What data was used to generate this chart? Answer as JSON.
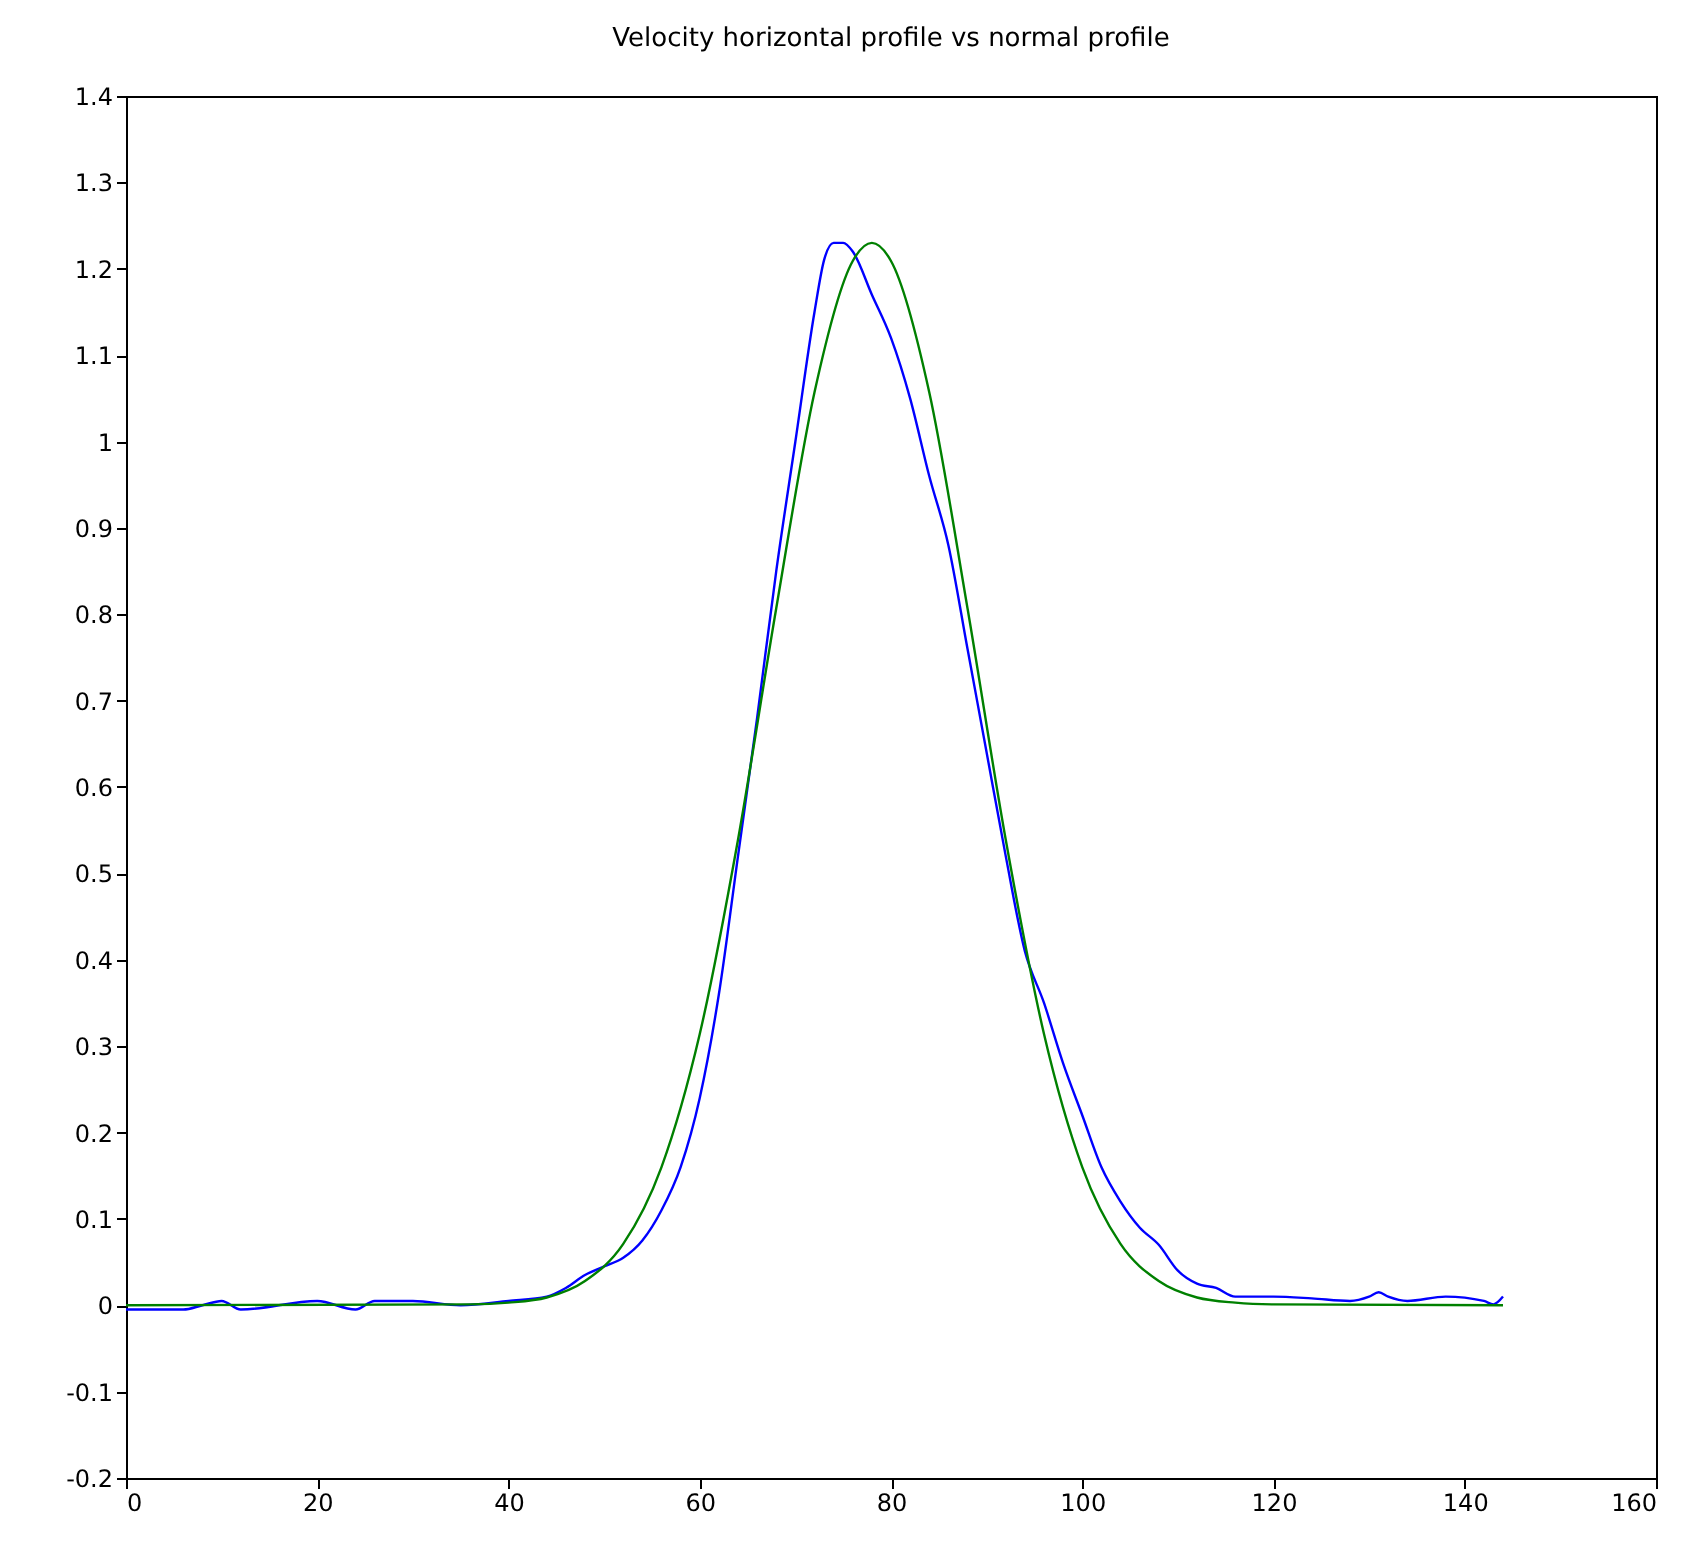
{
  "chart_data": {
    "type": "line",
    "title": "Velocity horizontal profile vs normal profile",
    "xlim": [
      0,
      160
    ],
    "xticks": [
      0,
      20,
      40,
      60,
      80,
      100,
      120,
      140,
      160
    ],
    "ylim": [
      -0.2,
      1.4
    ],
    "yticks": [
      -0.2,
      -0.1,
      0,
      0.1,
      0.2,
      0.3,
      0.4,
      0.5,
      0.6,
      0.7,
      0.8,
      0.9,
      1,
      1.1,
      1.2,
      1.3,
      1.4
    ],
    "grid": false,
    "legend": false,
    "marker": "none",
    "line_style": "solid",
    "series": [
      {
        "color": "#0000ff",
        "x": [
          0,
          2,
          4,
          6,
          8,
          10,
          12,
          20,
          24,
          26,
          30,
          35,
          40,
          44,
          46,
          48,
          50,
          52,
          54,
          56,
          58,
          60,
          62,
          64,
          66,
          68,
          70,
          72,
          73,
          74,
          75,
          76,
          78,
          80,
          82,
          84,
          86,
          88,
          90,
          92,
          94,
          96,
          98,
          100,
          102,
          104,
          106,
          108,
          110,
          112,
          114,
          116,
          120,
          124,
          128,
          130,
          131,
          132,
          134,
          138,
          142,
          143,
          144
        ],
        "values": [
          -0.005,
          -0.005,
          -0.005,
          -0.005,
          0,
          0.005,
          -0.005,
          0.005,
          -0.005,
          0.005,
          0.005,
          0,
          0.005,
          0.01,
          0.02,
          0.035,
          0.045,
          0.055,
          0.075,
          0.11,
          0.16,
          0.24,
          0.36,
          0.52,
          0.68,
          0.85,
          1.0,
          1.15,
          1.21,
          1.23,
          1.23,
          1.22,
          1.17,
          1.12,
          1.05,
          0.96,
          0.88,
          0.76,
          0.64,
          0.52,
          0.41,
          0.35,
          0.28,
          0.22,
          0.16,
          0.12,
          0.09,
          0.07,
          0.04,
          0.025,
          0.02,
          0.01,
          0.01,
          0.008,
          0.005,
          0.01,
          0.015,
          0.01,
          0.005,
          0.01,
          0.005,
          0.001,
          0.01
        ]
      },
      {
        "color": "#008000",
        "x": [
          0,
          36,
          40,
          44,
          48,
          52,
          56,
          60,
          64,
          68,
          72,
          76,
          78,
          80,
          84,
          88,
          92,
          96,
          100,
          104,
          108,
          112,
          116,
          120,
          144
        ],
        "values": [
          0,
          0.001,
          0.003,
          0.009,
          0.028,
          0.071,
          0.16,
          0.314,
          0.539,
          0.807,
          1.057,
          1.209,
          1.23,
          1.209,
          1.057,
          0.807,
          0.539,
          0.314,
          0.16,
          0.071,
          0.028,
          0.009,
          0.003,
          0.001,
          0
        ]
      }
    ]
  }
}
